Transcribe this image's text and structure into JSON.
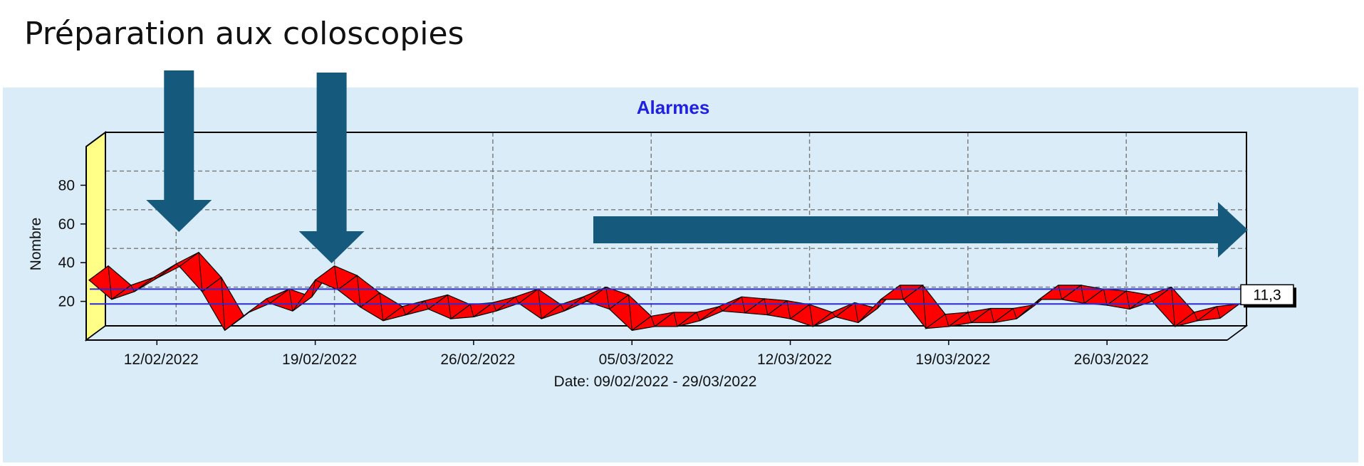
{
  "heading": "Préparation aux coloscopies",
  "colors": {
    "panel_background": "#daecf8",
    "series": "#ff0000",
    "title": "#2020e0",
    "reference_lines": "#2b2bd6",
    "left_wall": "#ffff88",
    "arrows": "#155a7d"
  },
  "annotations": {
    "arrows": [
      {
        "direction": "down",
        "points_to": "12/02/2022"
      },
      {
        "direction": "down",
        "points_to": "19/02/2022"
      },
      {
        "direction": "right",
        "spans": "05/03/2022 - 29/03/2022"
      }
    ]
  },
  "chart_data": {
    "type": "area",
    "style": "3d ribbon",
    "title": "Alarmes",
    "ylabel": "Nombre",
    "xlabel": "Date: 09/02/2022 - 29/03/2022",
    "ylim": [
      0,
      100
    ],
    "yticks": [
      "20",
      "40",
      "60",
      "80"
    ],
    "xticks": [
      "12/02/2022",
      "19/02/2022",
      "26/02/2022",
      "05/03/2022",
      "12/03/2022",
      "19/03/2022",
      "26/03/2022"
    ],
    "grid": true,
    "x_start": "09/02/2022",
    "x_end": "29/03/2022",
    "series": [
      {
        "values": [
          31,
          21,
          25,
          32,
          38,
          25,
          5,
          14,
          19,
          15,
          31,
          26,
          17,
          10,
          13,
          16,
          11,
          12,
          15,
          19,
          11,
          15,
          20,
          16,
          5,
          7,
          7,
          10,
          15,
          14,
          13,
          11,
          7,
          12,
          9,
          21,
          21,
          6,
          7,
          9,
          9,
          11,
          21,
          21,
          19,
          18,
          16,
          20,
          7,
          10,
          11.3
        ]
      }
    ],
    "reference_lines": [
      19,
      11.3
    ],
    "end_value_label": "11,3"
  }
}
